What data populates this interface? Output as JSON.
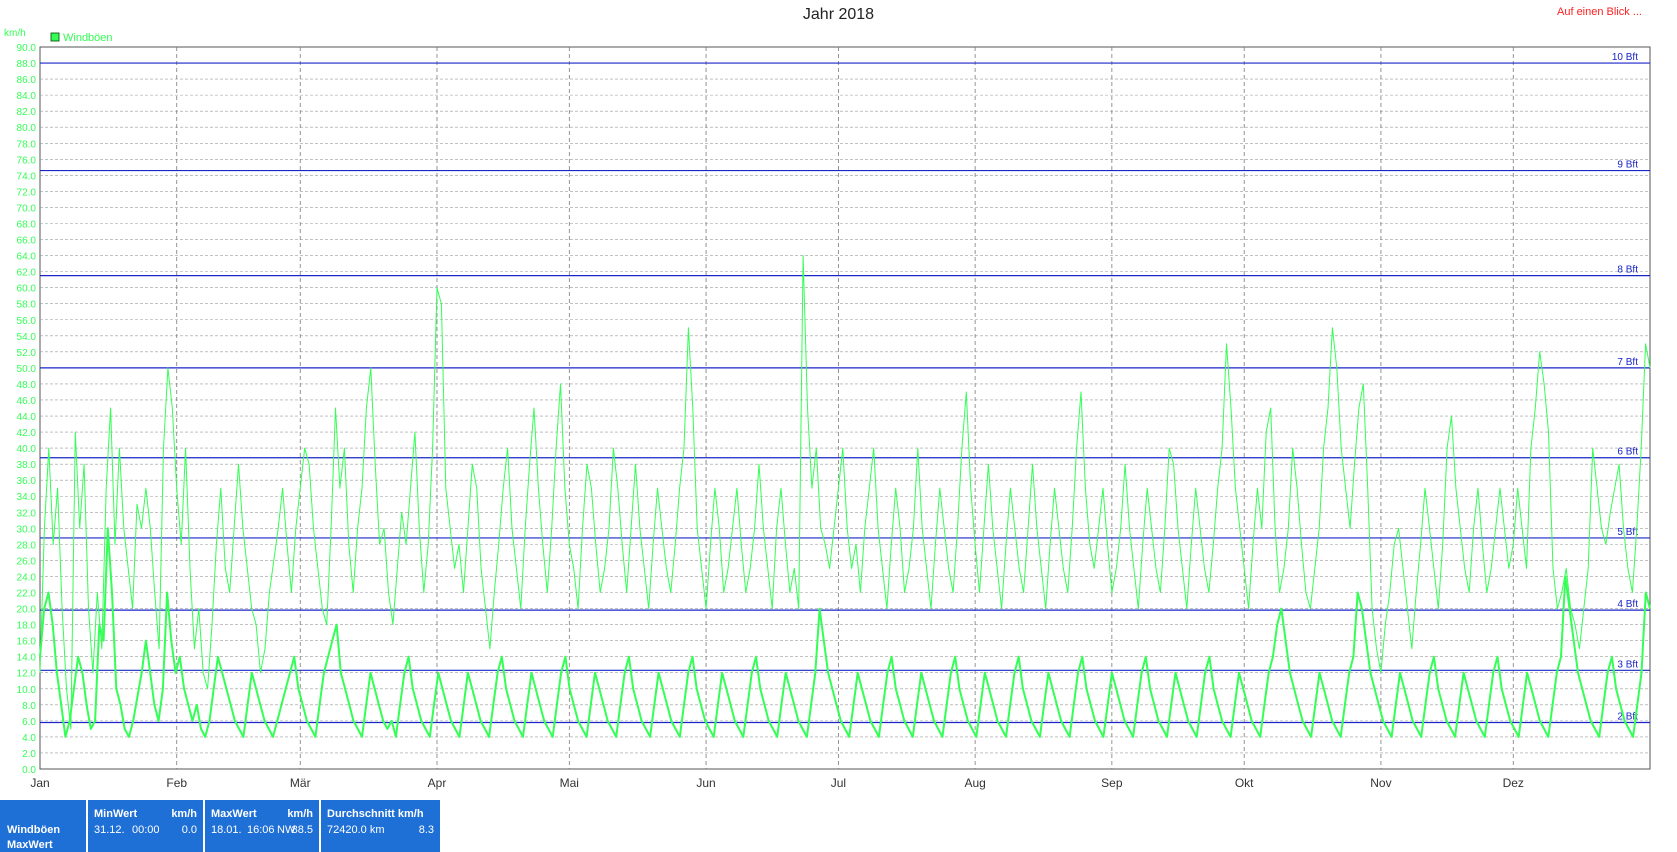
{
  "title": "Jahr 2018",
  "overview_link": "Auf einen Blick ...",
  "colors": {
    "series": "#33ff55",
    "beaufort_line": "#1a24c8",
    "beaufort_text": "#1a24c8",
    "axis_text": "#33ff55",
    "footer_bg": "#1e6fd6",
    "link": "#ff2020"
  },
  "chart_data": {
    "type": "line",
    "title": "Jahr 2018",
    "ylabel": "km/h",
    "ylim": [
      0,
      90
    ],
    "ytick_step": 2,
    "x_unit": "day of year",
    "xlim": [
      0,
      365
    ],
    "legend": {
      "position": "top-left",
      "entries": [
        "Windböen"
      ]
    },
    "grid": true,
    "month_labels": [
      "Jan",
      "Feb",
      "Mär",
      "Apr",
      "Mai",
      "Jun",
      "Jul",
      "Aug",
      "Sep",
      "Okt",
      "Nov",
      "Dez"
    ],
    "month_starts": [
      0,
      31,
      59,
      90,
      120,
      151,
      181,
      212,
      243,
      273,
      304,
      334
    ],
    "beaufort": [
      {
        "label": "2 Bft",
        "value": 5.8
      },
      {
        "label": "3 Bft",
        "value": 12.3
      },
      {
        "label": "4 Bft",
        "value": 19.8
      },
      {
        "label": "5 Bft",
        "value": 28.8
      },
      {
        "label": "6 Bft",
        "value": 38.8
      },
      {
        "label": "7 Bft",
        "value": 50.0
      },
      {
        "label": "8 Bft",
        "value": 61.5
      },
      {
        "label": "9 Bft",
        "value": 74.6
      },
      {
        "label": "10 Bft",
        "value": 88.0
      }
    ],
    "series": [
      {
        "name": "Windböen",
        "role": "max",
        "values": [
          12,
          30,
          40,
          28,
          35,
          20,
          10,
          5,
          42,
          30,
          38,
          20,
          12,
          22,
          15,
          35,
          45,
          28,
          40,
          30,
          25,
          20,
          33,
          30,
          35,
          30,
          22,
          15,
          40,
          50,
          45,
          35,
          28,
          40,
          25,
          15,
          20,
          12,
          10,
          18,
          28,
          35,
          25,
          22,
          30,
          38,
          30,
          25,
          20,
          18,
          12,
          15,
          22,
          26,
          30,
          35,
          28,
          22,
          30,
          35,
          40,
          38,
          30,
          25,
          20,
          18,
          30,
          45,
          35,
          40,
          28,
          22,
          30,
          35,
          45,
          50,
          38,
          28,
          30,
          22,
          18,
          25,
          32,
          28,
          35,
          42,
          30,
          22,
          28,
          40,
          60,
          58,
          35,
          30,
          25,
          28,
          22,
          30,
          38,
          35,
          25,
          20,
          15,
          22,
          28,
          35,
          40,
          30,
          25,
          20,
          30,
          38,
          45,
          35,
          28,
          22,
          30,
          40,
          48,
          35,
          28,
          25,
          20,
          30,
          38,
          35,
          28,
          22,
          25,
          30,
          40,
          35,
          28,
          22,
          30,
          38,
          30,
          25,
          20,
          28,
          35,
          30,
          25,
          22,
          28,
          35,
          40,
          55,
          45,
          30,
          25,
          20,
          28,
          35,
          30,
          22,
          25,
          30,
          35,
          28,
          22,
          25,
          30,
          38,
          30,
          25,
          20,
          30,
          35,
          28,
          22,
          25,
          20,
          64,
          45,
          35,
          40,
          30,
          28,
          25,
          30,
          35,
          40,
          30,
          25,
          28,
          22,
          30,
          35,
          40,
          30,
          25,
          20,
          28,
          35,
          30,
          22,
          25,
          30,
          40,
          30,
          25,
          20,
          28,
          35,
          30,
          25,
          22,
          30,
          40,
          47,
          35,
          28,
          22,
          30,
          38,
          30,
          25,
          20,
          28,
          35,
          30,
          25,
          22,
          30,
          38,
          30,
          25,
          20,
          28,
          35,
          30,
          25,
          22,
          30,
          40,
          47,
          35,
          28,
          25,
          30,
          35,
          28,
          22,
          25,
          30,
          38,
          30,
          25,
          20,
          28,
          35,
          30,
          25,
          22,
          30,
          40,
          38,
          30,
          25,
          20,
          28,
          35,
          30,
          25,
          22,
          28,
          35,
          40,
          53,
          45,
          35,
          30,
          25,
          20,
          28,
          35,
          30,
          42,
          45,
          30,
          22,
          25,
          30,
          40,
          35,
          28,
          22,
          20,
          25,
          30,
          40,
          45,
          55,
          50,
          40,
          35,
          30,
          38,
          45,
          48,
          35,
          20,
          15,
          12,
          18,
          22,
          28,
          30,
          25,
          20,
          15,
          22,
          28,
          35,
          30,
          25,
          20,
          28,
          40,
          44,
          35,
          30,
          25,
          22,
          30,
          35,
          28,
          22,
          25,
          30,
          35,
          30,
          25,
          28,
          35,
          30,
          25,
          40,
          45,
          52,
          48,
          42,
          25,
          20,
          22,
          25,
          20,
          18,
          15,
          20,
          25,
          40,
          35,
          30,
          28,
          32,
          35,
          38,
          30,
          25,
          22,
          30,
          40,
          53,
          50
        ]
      },
      {
        "name": "Windböen MaxWert",
        "role": "mean",
        "values": [
          14,
          20,
          22,
          18,
          12,
          8,
          4,
          6,
          10,
          14,
          12,
          8,
          5,
          6,
          18,
          16,
          30,
          22,
          10,
          8,
          5,
          4,
          6,
          9,
          12,
          16,
          12,
          8,
          6,
          10,
          22,
          16,
          12,
          14,
          10,
          8,
          6,
          8,
          5,
          4,
          6,
          10,
          14,
          12,
          10,
          8,
          6,
          5,
          4,
          8,
          12,
          10,
          8,
          6,
          5,
          4,
          6,
          8,
          10,
          12,
          14,
          10,
          8,
          6,
          5,
          4,
          8,
          12,
          14,
          16,
          18,
          12,
          10,
          8,
          6,
          5,
          4,
          8,
          12,
          10,
          8,
          6,
          5,
          6,
          4,
          8,
          12,
          14,
          10,
          8,
          6,
          5,
          4,
          8,
          12,
          10,
          8,
          6,
          5,
          4,
          8,
          12,
          10,
          8,
          6,
          5,
          4,
          8,
          12,
          14,
          10,
          8,
          6,
          5,
          4,
          8,
          12,
          10,
          8,
          6,
          5,
          4,
          8,
          12,
          14,
          10,
          8,
          6,
          5,
          4,
          8,
          12,
          10,
          8,
          6,
          5,
          4,
          8,
          12,
          14,
          10,
          8,
          6,
          5,
          4,
          8,
          12,
          10,
          8,
          6,
          5,
          4,
          8,
          12,
          14,
          10,
          8,
          6,
          5,
          4,
          8,
          12,
          10,
          8,
          6,
          5,
          4,
          8,
          12,
          14,
          10,
          8,
          6,
          5,
          4,
          8,
          12,
          10,
          8,
          6,
          5,
          4,
          8,
          12,
          20,
          16,
          12,
          10,
          8,
          6,
          5,
          4,
          8,
          12,
          10,
          8,
          6,
          5,
          4,
          8,
          12,
          14,
          10,
          8,
          6,
          5,
          4,
          8,
          12,
          10,
          8,
          6,
          5,
          4,
          8,
          12,
          14,
          10,
          8,
          6,
          5,
          4,
          8,
          12,
          10,
          8,
          6,
          5,
          4,
          8,
          12,
          14,
          10,
          8,
          6,
          5,
          4,
          8,
          12,
          10,
          8,
          6,
          5,
          4,
          8,
          12,
          14,
          10,
          8,
          6,
          5,
          4,
          8,
          12,
          10,
          8,
          6,
          5,
          4,
          8,
          12,
          14,
          10,
          8,
          6,
          5,
          4,
          8,
          12,
          10,
          8,
          6,
          5,
          4,
          8,
          12,
          14,
          10,
          8,
          6,
          5,
          4,
          8,
          12,
          10,
          8,
          6,
          5,
          4,
          8,
          12,
          14,
          18,
          20,
          16,
          12,
          10,
          8,
          6,
          5,
          4,
          8,
          12,
          10,
          8,
          6,
          5,
          4,
          8,
          12,
          14,
          22,
          20,
          16,
          12,
          10,
          8,
          6,
          5,
          4,
          8,
          12,
          10,
          8,
          6,
          5,
          4,
          8,
          12,
          14,
          10,
          8,
          6,
          5,
          4,
          8,
          12,
          10,
          8,
          6,
          5,
          4,
          8,
          12,
          14,
          10,
          8,
          6,
          5,
          4,
          8,
          12,
          10,
          8,
          6,
          5,
          4,
          8,
          12,
          14,
          24,
          20,
          16,
          12,
          10,
          8,
          6,
          5,
          4,
          8,
          12,
          14,
          10,
          8,
          6,
          5,
          4,
          8,
          12,
          22,
          20
        ]
      }
    ]
  },
  "footer": {
    "row_label_1": "Windböen",
    "row_label_2": "MaxWert",
    "min": {
      "header": "MinWert",
      "unit": "km/h",
      "date": "31.12.",
      "time": "00:00",
      "value": "0.0"
    },
    "max": {
      "header": "MaxWert",
      "unit": "km/h",
      "date": "18.01.",
      "time": "16:06",
      "dir": "NW",
      "value": "88.5"
    },
    "avg": {
      "header": "Durchschnitt km/h",
      "dist": "72420.0 km",
      "value": "8.3"
    }
  }
}
